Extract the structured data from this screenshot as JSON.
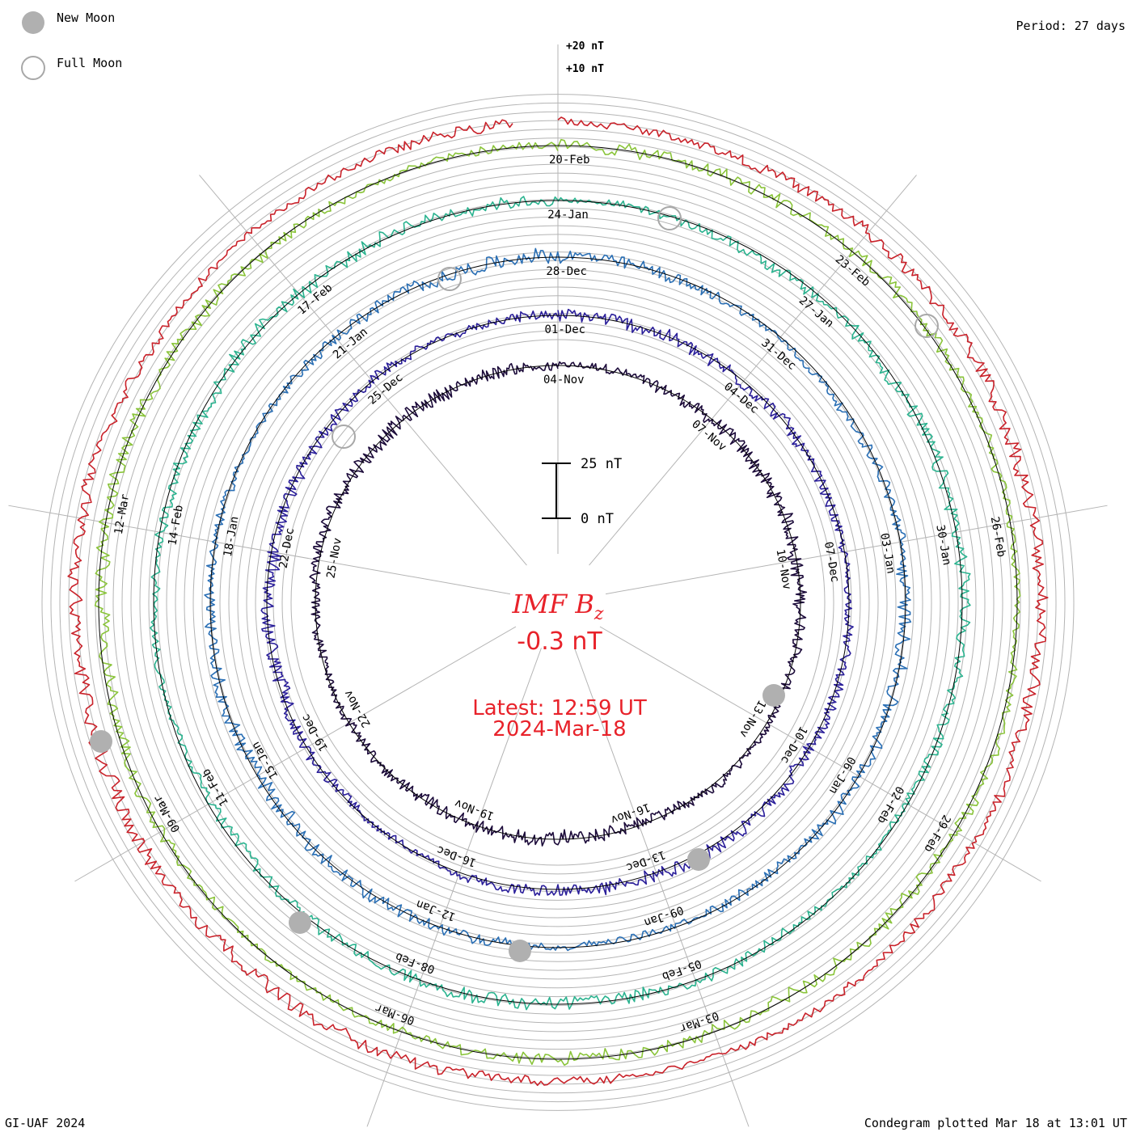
{
  "legend": {
    "new_moon": "New Moon",
    "full_moon": "Full Moon"
  },
  "period": "Period: 27 days",
  "footer_left": "GI-UAF 2024",
  "footer_right": "Condegram plotted Mar 18 at 13:01 UT",
  "ring_labels": [
    "+20 nT",
    "+10 nT"
  ],
  "scale_bar": {
    "top_label": "25 nT",
    "bottom_label": "0 nT"
  },
  "center": {
    "title": "IMF B",
    "title_sub": "z",
    "value": "-0.3 nT",
    "latest_time": "Latest: 12:59 UT",
    "latest_date": "2024-Mar-18"
  },
  "colors": {
    "accent": "#e8222a",
    "grid": "#b4b4b4",
    "new_moon": "#b0b0b0"
  },
  "chart_data": {
    "type": "condegram",
    "title": "IMF Bz",
    "period_days": 27,
    "rotations": [
      {
        "start": "04-Nov",
        "color": "#1c0b3a",
        "date_labels": [
          "04-Nov",
          "07-Nov",
          "10-Nov",
          "13-Nov",
          "16-Nov",
          "19-Nov",
          "22-Nov",
          "25-Nov"
        ]
      },
      {
        "start": "01-Dec",
        "color": "#2a1e9a",
        "date_labels": [
          "01-Dec",
          "04-Dec",
          "07-Dec",
          "10-Dec",
          "13-Dec",
          "16-Dec",
          "19-Dec",
          "22-Dec",
          "25-Dec"
        ]
      },
      {
        "start": "28-Dec",
        "color": "#2a6fb5",
        "date_labels": [
          "28-Dec",
          "31-Dec",
          "03-Jan",
          "06-Jan",
          "09-Jan",
          "12-Jan",
          "15-Jan",
          "18-Jan",
          "21-Jan"
        ]
      },
      {
        "start": "24-Jan",
        "color": "#2ab38f",
        "date_labels": [
          "24-Jan",
          "27-Jan",
          "30-Jan",
          "02-Feb",
          "05-Feb",
          "08-Feb",
          "11-Feb",
          "14-Feb",
          "17-Feb"
        ]
      },
      {
        "start": "20-Feb",
        "color": "#8ac43a",
        "date_labels": [
          "20-Feb",
          "23-Feb",
          "26-Feb",
          "29-Feb",
          "03-Mar",
          "06-Mar",
          "09-Mar",
          "12-Mar"
        ]
      },
      {
        "start": "18-Mar",
        "color": "#c9222a",
        "date_labels": []
      }
    ],
    "moon_events": {
      "new_moon": [
        "13-Nov",
        "13-Dec",
        "11-Jan",
        "09-Feb",
        "10-Mar"
      ],
      "full_moon": [
        "27-Nov",
        "26-Dec",
        "25-Jan",
        "24-Feb"
      ]
    },
    "latest_value_nT": -0.3,
    "latest_time": "12:59 UT",
    "latest_date": "2024-Mar-18"
  }
}
